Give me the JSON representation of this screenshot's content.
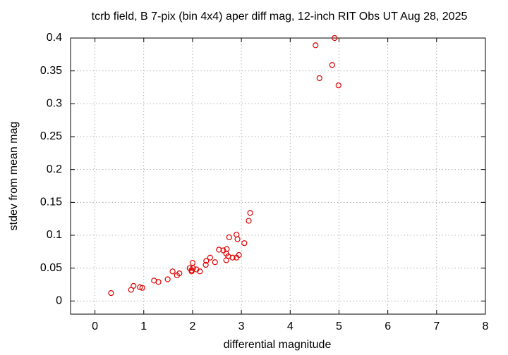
{
  "chart_data": {
    "type": "scatter",
    "title": "tcrb field, B 7-pix (bin 4x4) aper diff mag,  12-inch RIT Obs UT Aug 28, 2025",
    "x_label": "differential magnitude",
    "y_label": "stdev from mean mag",
    "xlim": [
      -0.5,
      8
    ],
    "ylim": [
      -0.02,
      0.4
    ],
    "xticks": [
      0,
      1,
      2,
      3,
      4,
      5,
      6,
      7,
      8
    ],
    "yticks": [
      0,
      0.05,
      0.1,
      0.15,
      0.2,
      0.25,
      0.3,
      0.35,
      0.4
    ],
    "grid": true,
    "color": "#e00000",
    "x": [
      0.33,
      0.74,
      0.79,
      0.92,
      0.97,
      1.21,
      1.3,
      1.49,
      1.59,
      1.68,
      1.73,
      1.94,
      1.98,
      2.0,
      2.01,
      1.98,
      2.08,
      2.15,
      2.27,
      2.28,
      2.36,
      2.46,
      2.54,
      2.63,
      2.69,
      2.7,
      2.69,
      2.73,
      2.75,
      2.82,
      2.9,
      2.9,
      2.92,
      2.95,
      3.06,
      3.15,
      3.18,
      4.52,
      4.91,
      4.86,
      4.6,
      4.99
    ],
    "values": [
      0.012,
      0.017,
      0.023,
      0.021,
      0.02,
      0.031,
      0.029,
      0.033,
      0.045,
      0.039,
      0.042,
      0.05,
      0.047,
      0.058,
      0.05,
      0.045,
      0.048,
      0.045,
      0.055,
      0.061,
      0.066,
      0.059,
      0.078,
      0.077,
      0.072,
      0.079,
      0.062,
      0.068,
      0.097,
      0.066,
      0.066,
      0.101,
      0.094,
      0.07,
      0.088,
      0.122,
      0.134,
      0.389,
      0.4,
      0.359,
      0.339,
      0.328
    ]
  }
}
